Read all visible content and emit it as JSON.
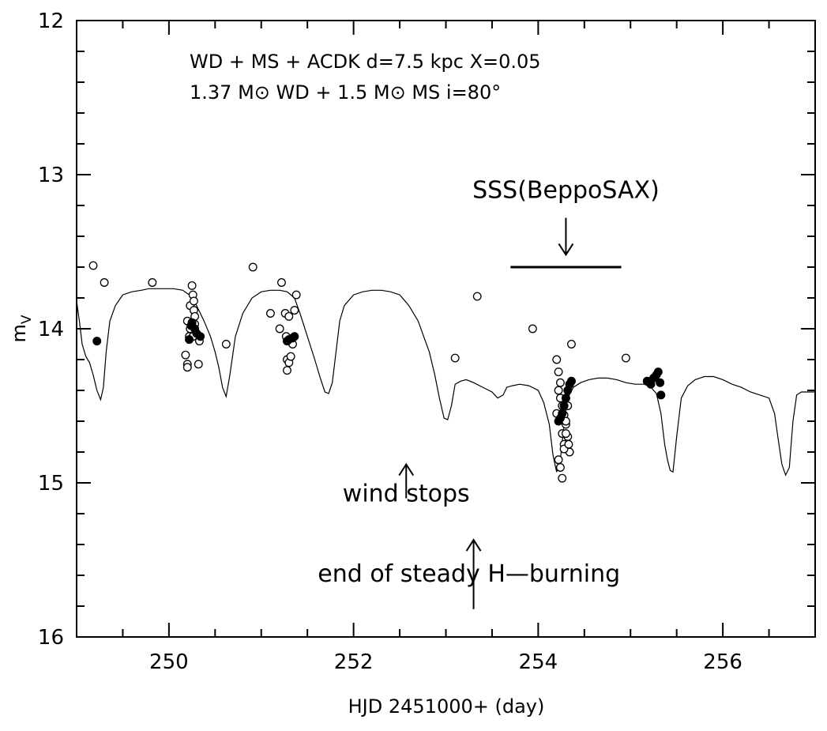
{
  "chart_data": {
    "type": "line",
    "title_lines": [
      "WD + MS + ACDK  d=7.5 kpc  X=0.05",
      "1.37 M⊙ WD + 1.5 M⊙ MS  i=80°"
    ],
    "xlabel": "HJD 2451000+ (day)",
    "ylabel": "m",
    "ylabel_sub": "V",
    "xlim": [
      249,
      257
    ],
    "ylim": [
      16,
      12
    ],
    "y_inverted": true,
    "x_ticks": [
      250,
      252,
      254,
      256
    ],
    "y_ticks": [
      12,
      13,
      14,
      15,
      16
    ],
    "x_tick_labels": [
      "250",
      "252",
      "254",
      "256"
    ],
    "y_tick_labels": [
      "12",
      "13",
      "14",
      "15",
      "16"
    ],
    "grid": false,
    "model_curve": {
      "name": "model light curve",
      "x": [
        249.0,
        249.03,
        249.06,
        249.1,
        249.14,
        249.18,
        249.22,
        249.26,
        249.29,
        249.32,
        249.36,
        249.42,
        249.5,
        249.6,
        249.7,
        249.78,
        249.85,
        249.95,
        250.05,
        250.15,
        250.22,
        250.3,
        250.38,
        250.45,
        250.5,
        250.54,
        250.58,
        250.62,
        250.66,
        250.72,
        250.8,
        250.9,
        251.0,
        251.1,
        251.2,
        251.28,
        251.36,
        251.42,
        251.5,
        251.58,
        251.64,
        251.69,
        251.73,
        251.77,
        251.81,
        251.85,
        251.9,
        252.0,
        252.1,
        252.2,
        252.3,
        252.4,
        252.5,
        252.6,
        252.7,
        252.76,
        252.82,
        252.88,
        252.93,
        252.98,
        253.02,
        253.06,
        253.1,
        253.16,
        253.22,
        253.3,
        253.4,
        253.5,
        253.56,
        253.62,
        253.66,
        253.72,
        253.8,
        253.9,
        254.0,
        254.06,
        254.12,
        254.16,
        254.2,
        254.24,
        254.28,
        254.32,
        254.38,
        254.46,
        254.55,
        254.65,
        254.75,
        254.85,
        254.95,
        255.05,
        255.15,
        255.22,
        255.28,
        255.33,
        255.37,
        255.4,
        255.43,
        255.46,
        255.5,
        255.55,
        255.62,
        255.7,
        255.8,
        255.9,
        256.0,
        256.1,
        256.2,
        256.3,
        256.4,
        256.5,
        256.56,
        256.6,
        256.64,
        256.68,
        256.72,
        256.76,
        256.8,
        256.85,
        256.9,
        256.95,
        257.0
      ],
      "y": [
        13.82,
        13.95,
        14.1,
        14.18,
        14.22,
        14.3,
        14.4,
        14.46,
        14.38,
        14.15,
        13.95,
        13.85,
        13.78,
        13.76,
        13.75,
        13.74,
        13.74,
        13.74,
        13.74,
        13.75,
        13.78,
        13.85,
        13.95,
        14.05,
        14.15,
        14.25,
        14.38,
        14.44,
        14.3,
        14.05,
        13.9,
        13.8,
        13.76,
        13.75,
        13.75,
        13.76,
        13.8,
        13.9,
        14.05,
        14.2,
        14.32,
        14.41,
        14.42,
        14.35,
        14.15,
        13.95,
        13.85,
        13.78,
        13.76,
        13.75,
        13.75,
        13.76,
        13.78,
        13.85,
        13.95,
        14.05,
        14.15,
        14.3,
        14.45,
        14.58,
        14.59,
        14.5,
        14.36,
        14.34,
        14.33,
        14.35,
        14.38,
        14.41,
        14.45,
        14.43,
        14.38,
        14.37,
        14.36,
        14.37,
        14.4,
        14.48,
        14.62,
        14.82,
        14.93,
        14.85,
        14.62,
        14.45,
        14.38,
        14.35,
        14.33,
        14.32,
        14.32,
        14.33,
        14.35,
        14.36,
        14.36,
        14.38,
        14.42,
        14.55,
        14.75,
        14.85,
        14.92,
        14.93,
        14.7,
        14.45,
        14.37,
        14.33,
        14.31,
        14.31,
        14.33,
        14.36,
        14.38,
        14.41,
        14.43,
        14.45,
        14.55,
        14.72,
        14.88,
        14.95,
        14.9,
        14.6,
        14.43,
        14.41,
        14.41,
        14.41,
        14.41
      ]
    },
    "observations_open": {
      "name": "observed (open circles)",
      "x": [
        249.18,
        249.3,
        249.82,
        250.18,
        250.2,
        250.22,
        250.2,
        250.2,
        250.23,
        250.25,
        250.26,
        250.27,
        250.27,
        250.28,
        250.23,
        250.26,
        250.28,
        250.32,
        250.33,
        250.62,
        250.91,
        251.1,
        251.2,
        251.22,
        251.26,
        251.27,
        251.28,
        251.28,
        251.3,
        251.3,
        251.32,
        251.34,
        251.36,
        251.38,
        253.1,
        253.34,
        253.94,
        254.2,
        254.22,
        254.24,
        254.26,
        254.28,
        254.3,
        254.32,
        254.34,
        254.2,
        254.22,
        254.24,
        254.26,
        254.28,
        254.3,
        254.32,
        254.22,
        254.24,
        254.26,
        254.28,
        254.3,
        254.33,
        254.36,
        254.95
      ],
      "y": [
        13.59,
        13.7,
        13.7,
        14.17,
        14.23,
        14.05,
        13.95,
        14.25,
        13.85,
        13.72,
        13.78,
        13.82,
        13.88,
        13.92,
        14.0,
        14.05,
        13.97,
        14.23,
        14.08,
        14.1,
        13.6,
        13.9,
        14.0,
        13.7,
        13.9,
        14.05,
        14.2,
        14.27,
        13.92,
        14.22,
        14.18,
        14.1,
        13.88,
        13.78,
        14.19,
        13.79,
        14.0,
        14.55,
        14.4,
        14.45,
        14.5,
        14.56,
        14.62,
        14.7,
        14.8,
        14.2,
        14.28,
        14.35,
        14.68,
        14.75,
        14.6,
        14.5,
        14.85,
        14.9,
        14.97,
        14.78,
        14.68,
        14.75,
        14.1,
        14.19
      ]
    },
    "observations_filled": {
      "name": "observed (filled circles)",
      "x": [
        249.22,
        250.22,
        250.25,
        250.28,
        250.3,
        250.34,
        250.24,
        251.28,
        251.3,
        251.34,
        251.36,
        254.22,
        254.24,
        254.26,
        254.28,
        254.3,
        254.32,
        254.34,
        254.36,
        255.18,
        255.22,
        255.25,
        255.28,
        255.32,
        255.3,
        255.33
      ],
      "y": [
        14.08,
        14.07,
        13.96,
        14.0,
        14.03,
        14.05,
        13.98,
        14.08,
        14.07,
        14.06,
        14.05,
        14.6,
        14.58,
        14.55,
        14.5,
        14.45,
        14.4,
        14.36,
        14.34,
        14.34,
        14.36,
        14.32,
        14.3,
        14.35,
        14.28,
        14.43
      ]
    },
    "annotations": [
      {
        "text": "SSS(BeppoSAX)",
        "x": 254.3,
        "y": 13.15
      },
      {
        "text": "wind stops",
        "x": 252.57,
        "y": 15.12
      },
      {
        "text": "end of steady H—burning",
        "x": 253.25,
        "y": 15.64
      }
    ],
    "arrows": [
      {
        "from": [
          254.3,
          13.28
        ],
        "to": [
          254.3,
          13.52
        ],
        "direction": "down"
      },
      {
        "from": [
          252.57,
          15.1
        ],
        "to": [
          252.57,
          14.88
        ],
        "direction": "up"
      },
      {
        "from": [
          253.3,
          15.82
        ],
        "to": [
          253.3,
          15.37
        ],
        "direction": "up"
      }
    ],
    "segment": {
      "x": [
        253.7,
        254.9
      ],
      "y": 13.6
    }
  }
}
